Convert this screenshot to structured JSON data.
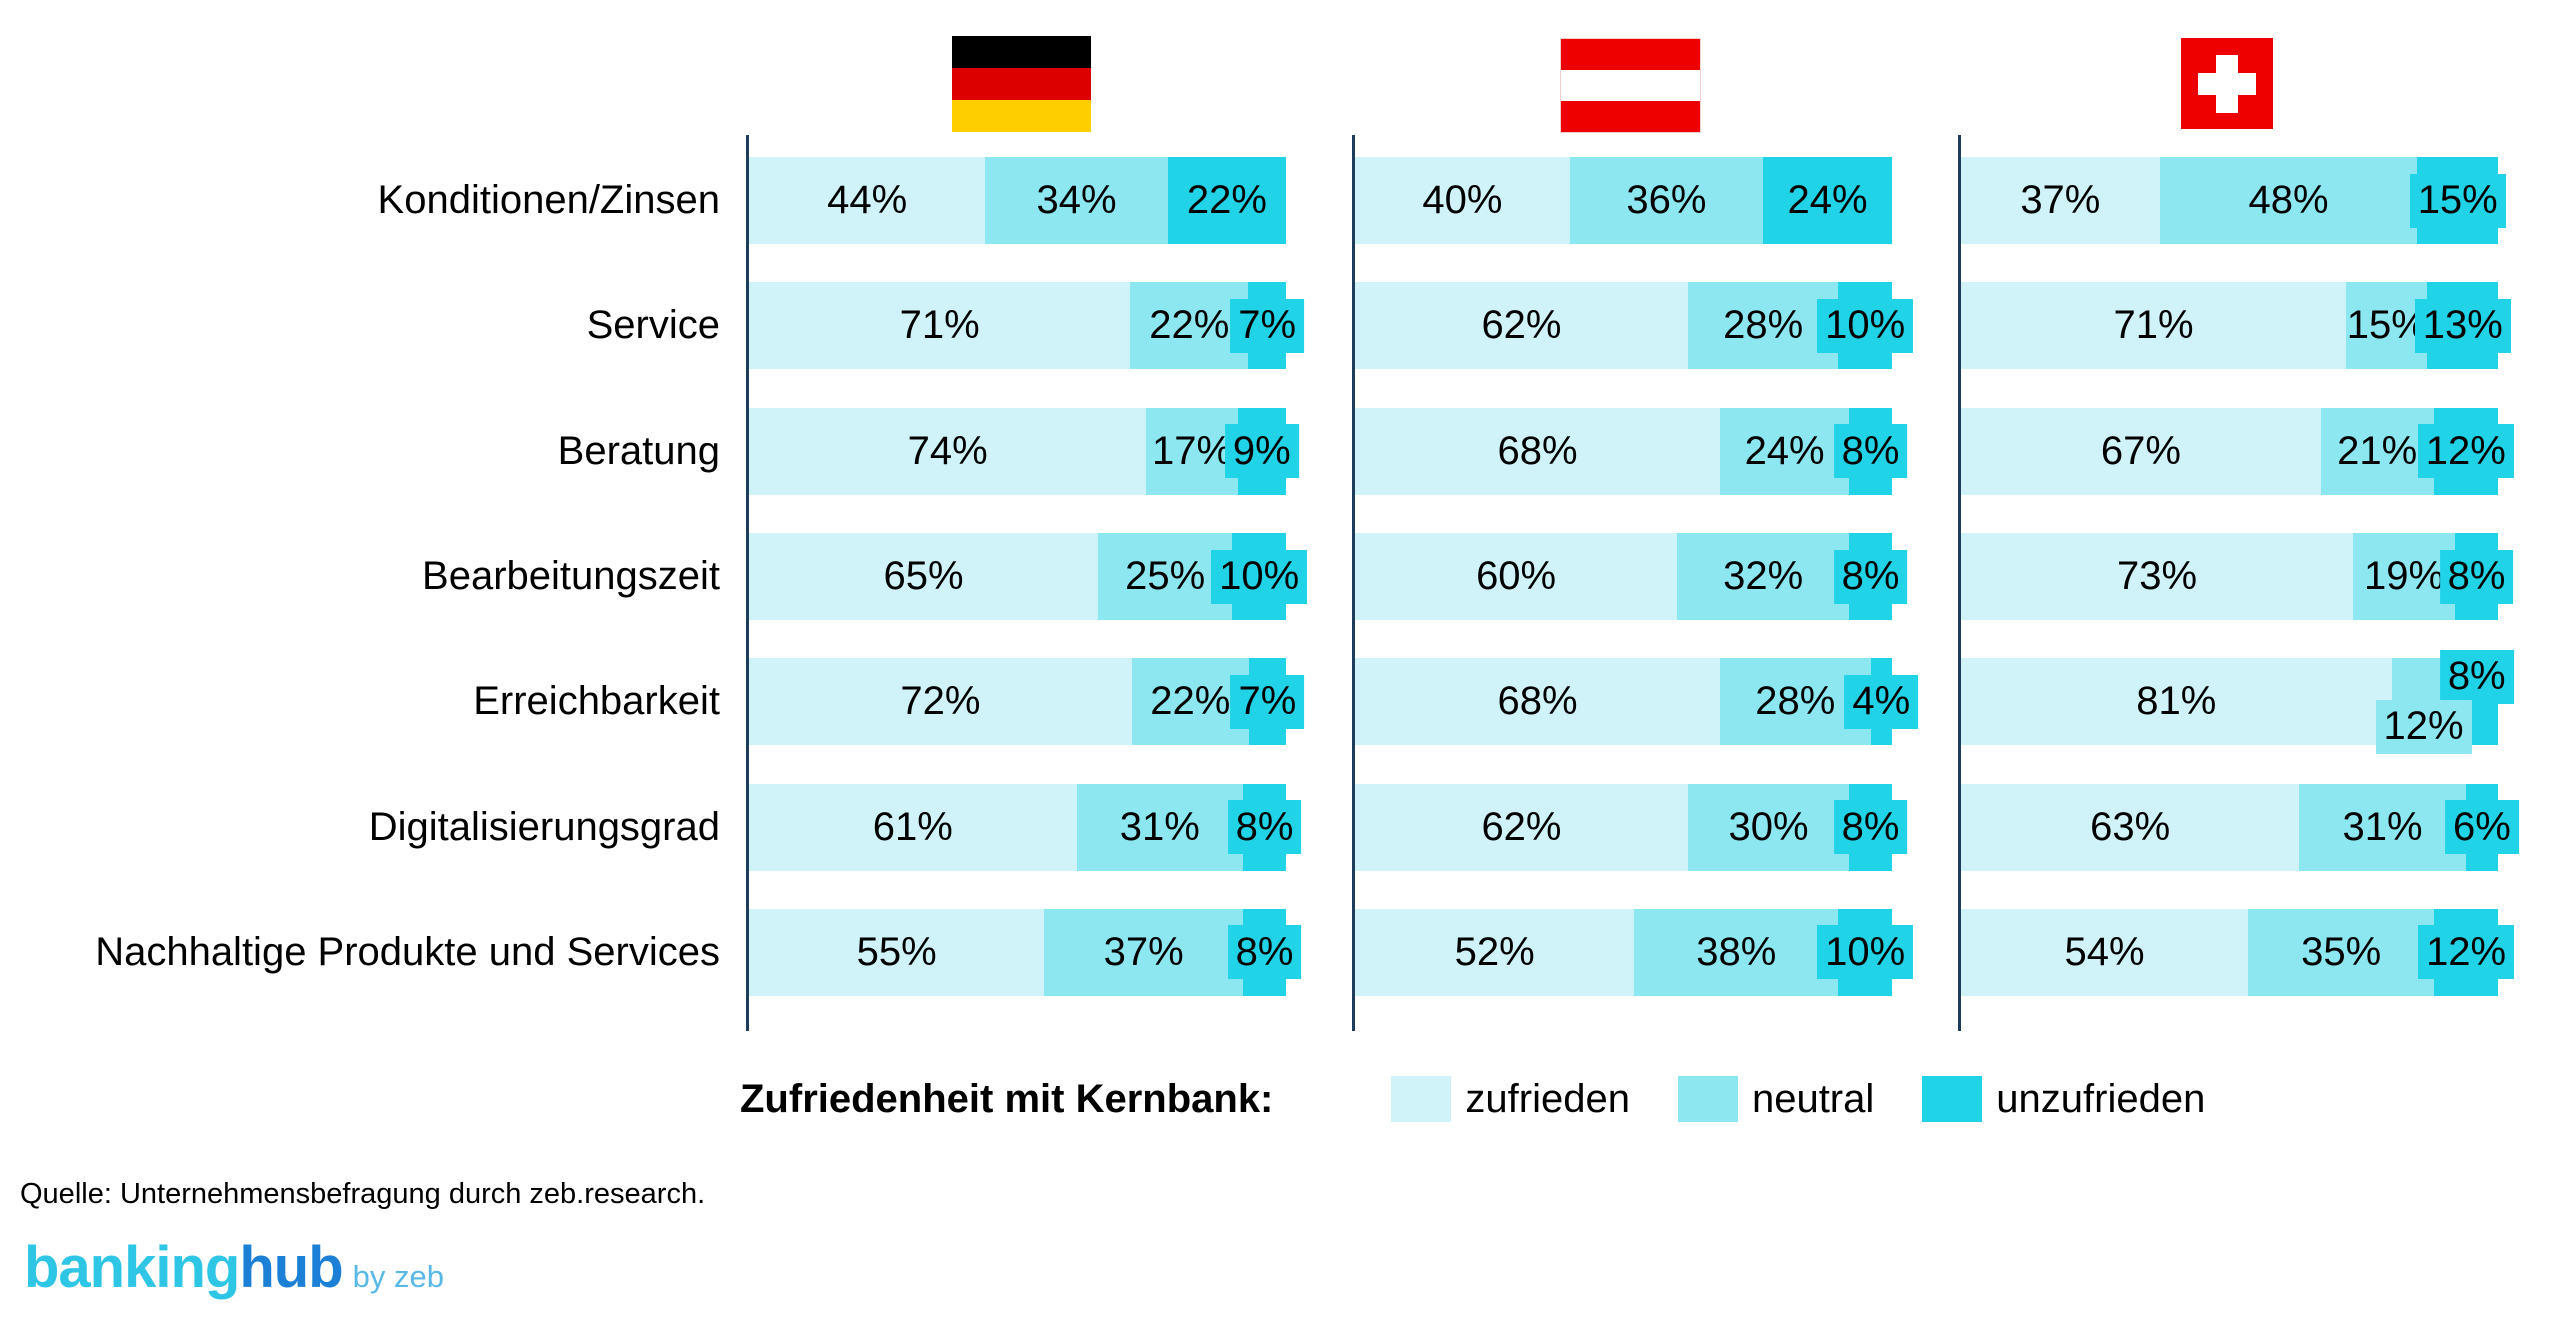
{
  "chart_data": {
    "type": "bar",
    "stacked": true,
    "orientation": "horizontal",
    "unit": "%",
    "grid": false,
    "axis_color": "#1e3c5c",
    "categories": [
      "Konditionen/Zinsen",
      "Service",
      "Beratung",
      "Bearbeitungszeit",
      "Erreichbarkeit",
      "Digitalisierungsgrad",
      "Nachhaltige Produkte und Services"
    ],
    "series": [
      {
        "name": "zufrieden",
        "color": "#cff3f9"
      },
      {
        "name": "neutral",
        "color": "#8de7f1"
      },
      {
        "name": "unzufrieden",
        "color": "#20d3e6"
      }
    ],
    "groups": [
      {
        "country": "germany",
        "flag_icon": "flag-germany",
        "values": [
          [
            44,
            34,
            22
          ],
          [
            71,
            22,
            7
          ],
          [
            74,
            17,
            9
          ],
          [
            65,
            25,
            10
          ],
          [
            72,
            22,
            7
          ],
          [
            61,
            31,
            8
          ],
          [
            55,
            37,
            8
          ]
        ]
      },
      {
        "country": "austria",
        "flag_icon": "flag-austria",
        "values": [
          [
            40,
            36,
            24
          ],
          [
            62,
            28,
            10
          ],
          [
            68,
            24,
            8
          ],
          [
            60,
            32,
            8
          ],
          [
            68,
            28,
            4
          ],
          [
            62,
            30,
            8
          ],
          [
            52,
            38,
            10
          ]
        ]
      },
      {
        "country": "switzerland",
        "flag_icon": "flag-switzerland",
        "values": [
          [
            37,
            48,
            15
          ],
          [
            71,
            15,
            13
          ],
          [
            67,
            21,
            12
          ],
          [
            73,
            19,
            8
          ],
          [
            81,
            12,
            8
          ],
          [
            63,
            31,
            6
          ],
          [
            54,
            35,
            12
          ]
        ]
      }
    ]
  },
  "legend": {
    "title": "Zufriedenheit mit Kernbank:",
    "items": [
      {
        "label": "zufrieden"
      },
      {
        "label": "neutral"
      },
      {
        "label": "unzufrieden"
      }
    ]
  },
  "source": "Quelle: Unternehmensbefragung durch zeb.research.",
  "logo": {
    "part1": "banking",
    "part2": "hub",
    "suffix": "by zeb",
    "colors": {
      "part1": "#2fc6e6",
      "part2": "#1b80d6",
      "suffix": "#5ab8e6"
    }
  },
  "flags": {
    "germany": {
      "stripes": [
        "#000000",
        "#dd0000",
        "#ffce00"
      ]
    },
    "austria": {
      "stripes": [
        "#ee0000",
        "#ffffff",
        "#ee0000"
      ]
    },
    "switzerland": {
      "field": "#ee0000",
      "cross": "#ffffff"
    }
  }
}
